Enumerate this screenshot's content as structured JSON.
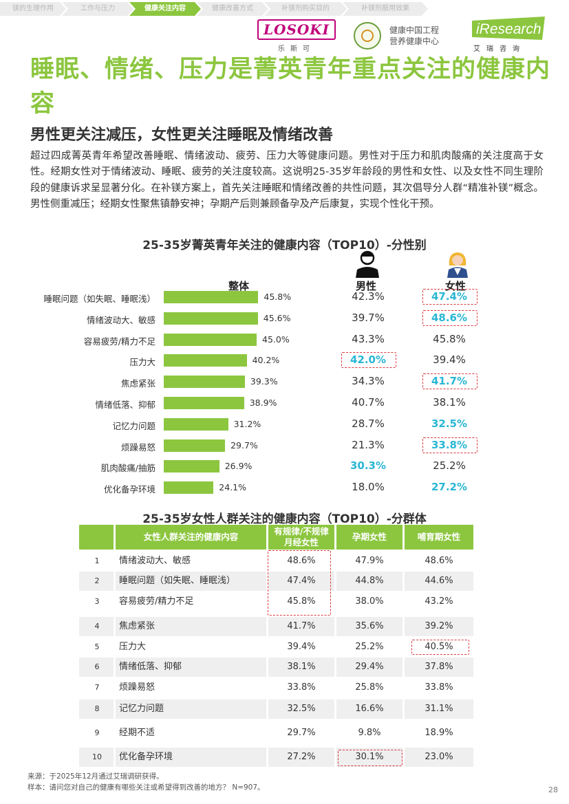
{
  "nav": {
    "tabs": [
      {
        "label": "镁的生理作用",
        "active": false
      },
      {
        "label": "工作与压力",
        "active": false
      },
      {
        "label": "健康关注内容",
        "active": true
      },
      {
        "label": "健康改善方式",
        "active": false
      },
      {
        "label": "补镁剂购买目的",
        "active": false
      },
      {
        "label": "补镁剂服用效果",
        "active": false
      }
    ]
  },
  "logos": {
    "losoki": "LOSOKI",
    "losoki_sub": "乐斯可",
    "org_line1": "健康中国工程",
    "org_line2": "营养健康中心",
    "iresearch": "iResearch",
    "iresearch_sub": "艾瑞咨询"
  },
  "title": "睡眠、情绪、压力是菁英青年重点关注的健康内容",
  "subtitle": "男性更关注减压，女性更关注睡眠及情绪改善",
  "body": "超过四成菁英青年希望改善睡眠、情绪波动、疲劳、压力大等健康问题。男性对于压力和肌肉酸痛的关注度高于女性。经期女性对于情绪波动、睡眠、疲劳的关注度较高。这说明25-35岁年龄段的男性和女性、以及女性不同生理阶段的健康诉求呈显著分化。在补镁方案上，首先关注睡眠和情绪改善的共性问题，其次倡导分人群“精准补镁”概念。男性侧重减压；经期女性聚焦镇静安神；孕期产后则兼顾备孕及产后康复，实现个性化干预。",
  "chart_data": [
    {
      "type": "bar",
      "title": "25-35岁菁英青年关注的健康内容（TOP10）-分性别",
      "categories": [
        "睡眠问题（如失眠、睡眠浅）",
        "情绪波动大、敏感",
        "容易疲劳/精力不足",
        "压力大",
        "焦虑紧张",
        "情绪低落、抑郁",
        "记忆力问题",
        "烦躁易怒",
        "肌肉酸痛/抽筋",
        "优化备孕环境"
      ],
      "unit": "%",
      "series": [
        {
          "name": "整体",
          "values": [
            45.8,
            45.6,
            45.0,
            40.2,
            39.3,
            38.9,
            31.2,
            29.7,
            26.9,
            24.1
          ]
        },
        {
          "name": "男性",
          "values": [
            42.3,
            39.7,
            43.3,
            42.0,
            34.3,
            40.7,
            28.7,
            21.3,
            30.3,
            18.0
          ]
        },
        {
          "name": "女性",
          "values": [
            47.4,
            48.6,
            45.8,
            39.4,
            41.7,
            38.1,
            32.5,
            33.8,
            25.2,
            27.2
          ]
        }
      ],
      "highlight_color": "#29b6d4",
      "bar_color": "#8cc63f",
      "highlighted": {
        "男性": [
          3,
          8
        ],
        "女性": [
          0,
          1,
          4,
          6,
          7,
          9
        ]
      },
      "boxed": {
        "男性": [
          3
        ],
        "女性": [
          0,
          1,
          4,
          7
        ]
      }
    },
    {
      "type": "table",
      "title": "25-35岁女性人群关注的健康内容（TOP10）-分群体",
      "columns": [
        "",
        "女性人群关注的健康内容",
        "有规律/不规律月经女性",
        "孕期女性",
        "哺育期女性"
      ],
      "rows": [
        [
          "1",
          "情绪波动大、敏感",
          "48.6%",
          "47.9%",
          "48.6%"
        ],
        [
          "2",
          "睡眠问题（如失眠、睡眠浅）",
          "47.4%",
          "44.8%",
          "44.6%"
        ],
        [
          "3",
          "容易疲劳/精力不足",
          "45.8%",
          "38.0%",
          "43.2%"
        ],
        [
          "4",
          "焦虑紧张",
          "41.7%",
          "35.6%",
          "39.2%"
        ],
        [
          "5",
          "压力大",
          "39.4%",
          "25.2%",
          "40.5%"
        ],
        [
          "6",
          "情绪低落、抑郁",
          "38.1%",
          "29.4%",
          "37.8%"
        ],
        [
          "7",
          "烦躁易怒",
          "33.8%",
          "25.8%",
          "33.8%"
        ],
        [
          "8",
          "记忆力问题",
          "32.5%",
          "16.6%",
          "31.1%"
        ],
        [
          "9",
          "经期不适",
          "29.7%",
          "9.8%",
          "18.9%"
        ],
        [
          "10",
          "优化备孕环境",
          "27.2%",
          "30.1%",
          "23.0%"
        ]
      ],
      "header_color": "#8cc63f"
    }
  ],
  "footer": {
    "source": "来源：于2025年12月通过艾瑞调研获得。",
    "sample": "样本：请问您对自己的健康有哪些关注或希望得到改善的地方？ N=907。",
    "page": "28"
  }
}
